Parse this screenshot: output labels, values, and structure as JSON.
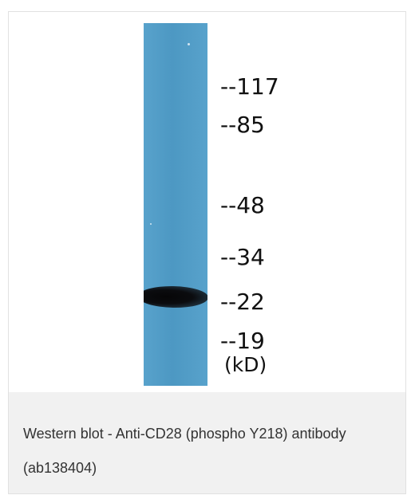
{
  "figure": {
    "markers": [
      "--117",
      "--85",
      "--48",
      "--34",
      "--22",
      "--19"
    ],
    "unit": "(kD)",
    "caption": "Western blot - Anti-CD28 (phospho Y218) antibody (ab138404)",
    "colors": {
      "lane": "#4f9dc9",
      "band": "#090a0c",
      "caption_background": "#f1f1f1",
      "caption_text": "#333333"
    }
  }
}
